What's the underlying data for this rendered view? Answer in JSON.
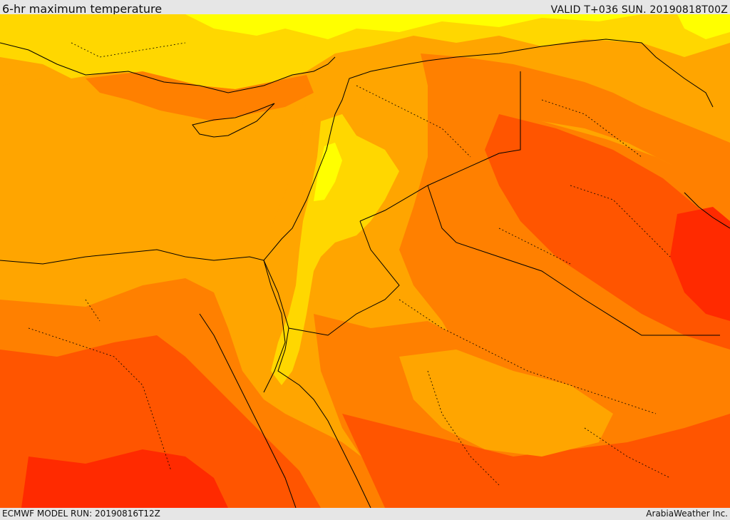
{
  "header": {
    "title": "6-hr maximum temperature",
    "valid_time": "VALID T+036 SUN. 20190818T00Z"
  },
  "footer": {
    "model_run": "ECMWF MODEL RUN: 20190816T12Z",
    "credit": "ArabiaWeather Inc."
  },
  "map": {
    "colors": {
      "cooler_yellow": "#ffff00",
      "light_yellow": "#ffd700",
      "orange": "#ffa500",
      "dark_orange": "#ff8000",
      "red_orange": "#ff5500",
      "red": "#ff2a00"
    }
  }
}
